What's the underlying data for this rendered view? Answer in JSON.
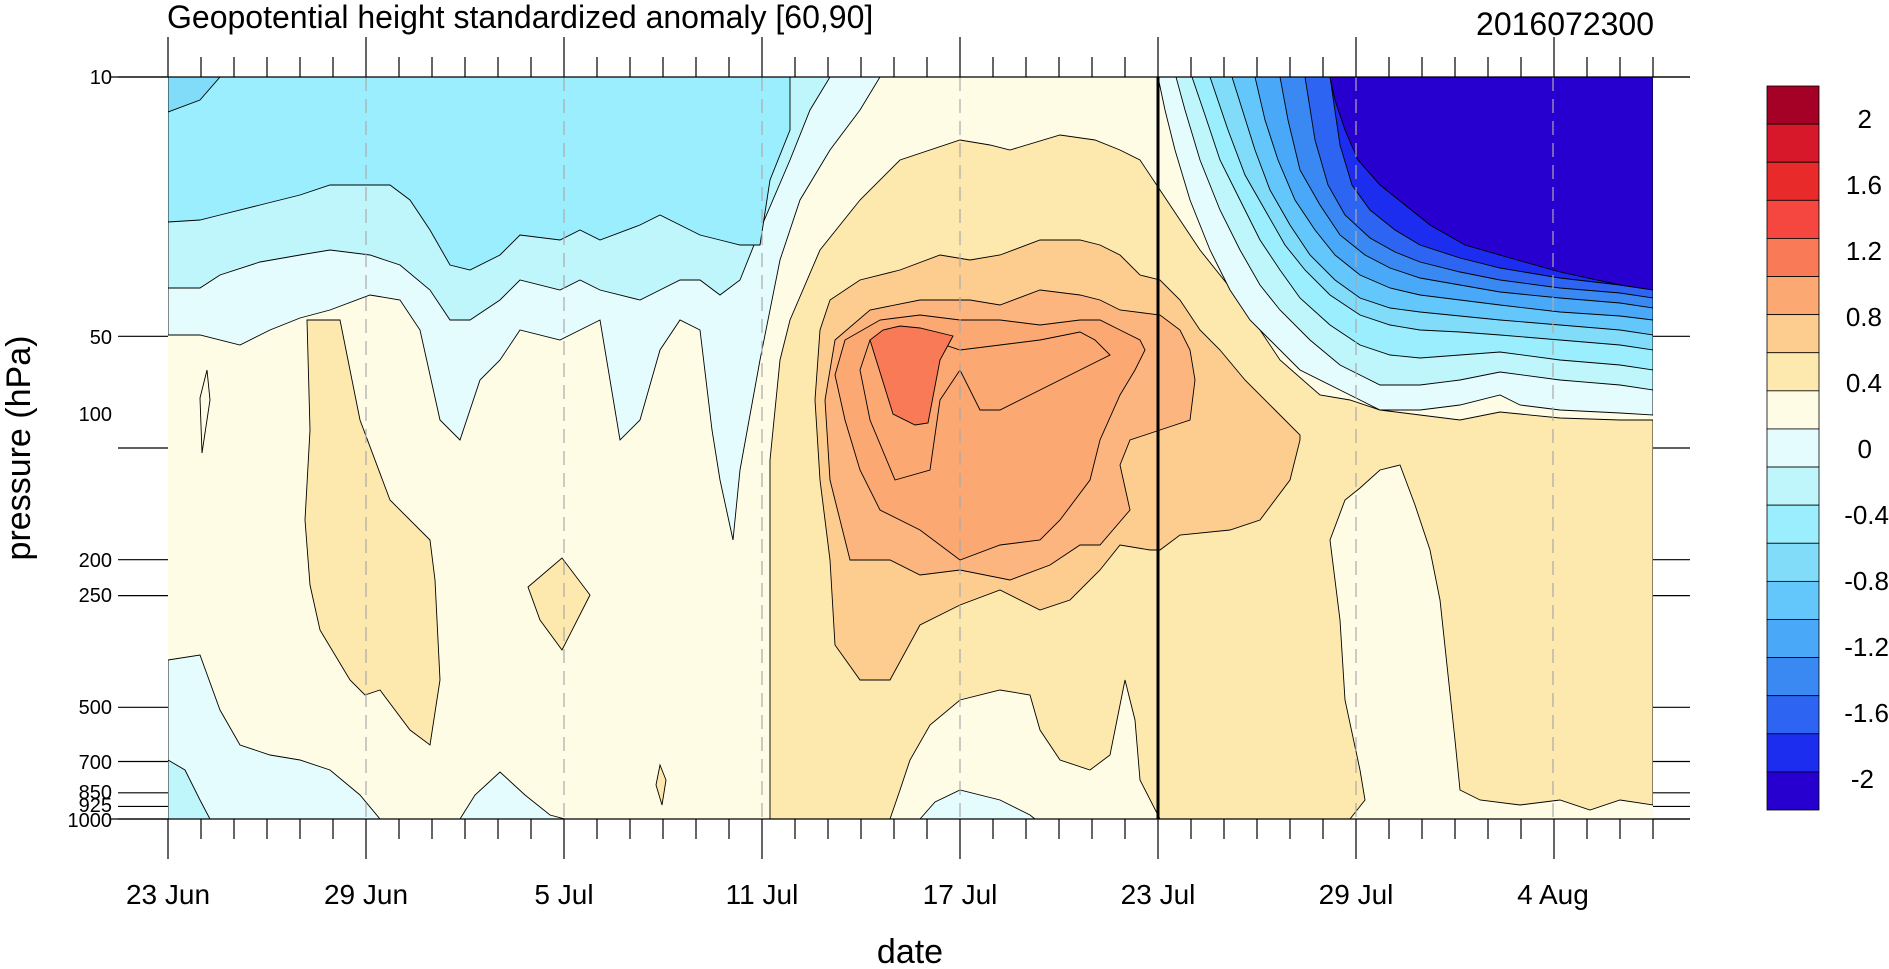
{
  "chart_data": {
    "type": "contour",
    "title": "Geopotential height standardized anomaly [60,90]",
    "timestamp": "2016072300",
    "xlabel": "date",
    "ylabel": "pressure (hPa)",
    "x_ticks": [
      "23 Jun",
      "29 Jun",
      "5 Jul",
      "11 Jul",
      "17 Jul",
      "23 Jul",
      "29 Jul",
      "4 Aug"
    ],
    "y_ticks": [
      "10",
      "50",
      "100",
      "200",
      "250",
      "500",
      "700",
      "850",
      "925",
      "1000"
    ],
    "y_scale": "log",
    "x_range": [
      "23 Jun",
      "7 Aug"
    ],
    "y_range": [
      1000,
      10
    ],
    "analysis_date": "23 Jul",
    "colorbar_labels": [
      "2",
      "1.6",
      "1.2",
      "0.8",
      "0.4",
      "0",
      "-0.4",
      "-0.8",
      "-1.2",
      "-1.6",
      "-2"
    ],
    "colorbar_colors": [
      "#a50026",
      "#d7182a",
      "#e92a2a",
      "#f54640",
      "#f97a56",
      "#fba873",
      "#fdcd90",
      "#fde8ae",
      "#fffce6",
      "#e4fcfd",
      "#bff6fb",
      "#9aeefd",
      "#80dcf9",
      "#64c7fb",
      "#4aa8f8",
      "#3a88f2",
      "#2d64f1",
      "#1d2df0",
      "#2700d0"
    ],
    "features": [
      {
        "name": "positive-anomaly-max",
        "date": "15 Jul",
        "pressure_hPa": 60,
        "value": 1.2
      },
      {
        "name": "negative-anomaly-min",
        "date": "4 Aug",
        "pressure_hPa": 10,
        "value": -2
      }
    ]
  }
}
